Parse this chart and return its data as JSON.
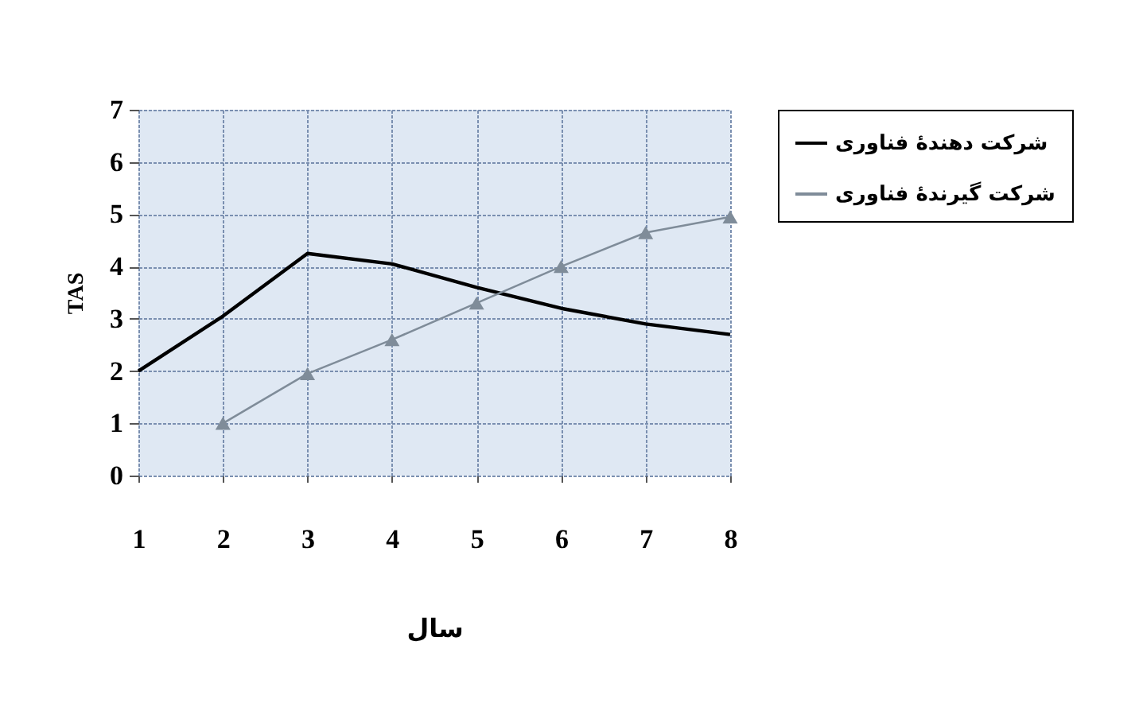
{
  "chart_data": {
    "type": "line",
    "xlabel": "سال",
    "ylabel": "TAS",
    "x": [
      1,
      2,
      3,
      4,
      5,
      6,
      7,
      8
    ],
    "xlim": [
      1,
      8
    ],
    "xticks": [
      1,
      2,
      3,
      4,
      5,
      6,
      7,
      8
    ],
    "ylim": [
      0,
      7
    ],
    "yticks": [
      0,
      1,
      2,
      3,
      4,
      5,
      6,
      7
    ],
    "grid": true,
    "legend": "right",
    "series": [
      {
        "name": "شرکت دهندهٔ فناوری",
        "color": "#000000",
        "marker": "none",
        "values": [
          2,
          3.05,
          4.25,
          4.05,
          3.6,
          3.2,
          2.9,
          2.7
        ]
      },
      {
        "name": "شرکت گیرندهٔ فناوری",
        "color": "#7f8c99",
        "marker": "triangle",
        "x": [
          2,
          3,
          4,
          5,
          6,
          7,
          8
        ],
        "values": [
          1,
          1.95,
          2.6,
          3.3,
          4.0,
          4.65,
          4.95
        ]
      }
    ]
  }
}
